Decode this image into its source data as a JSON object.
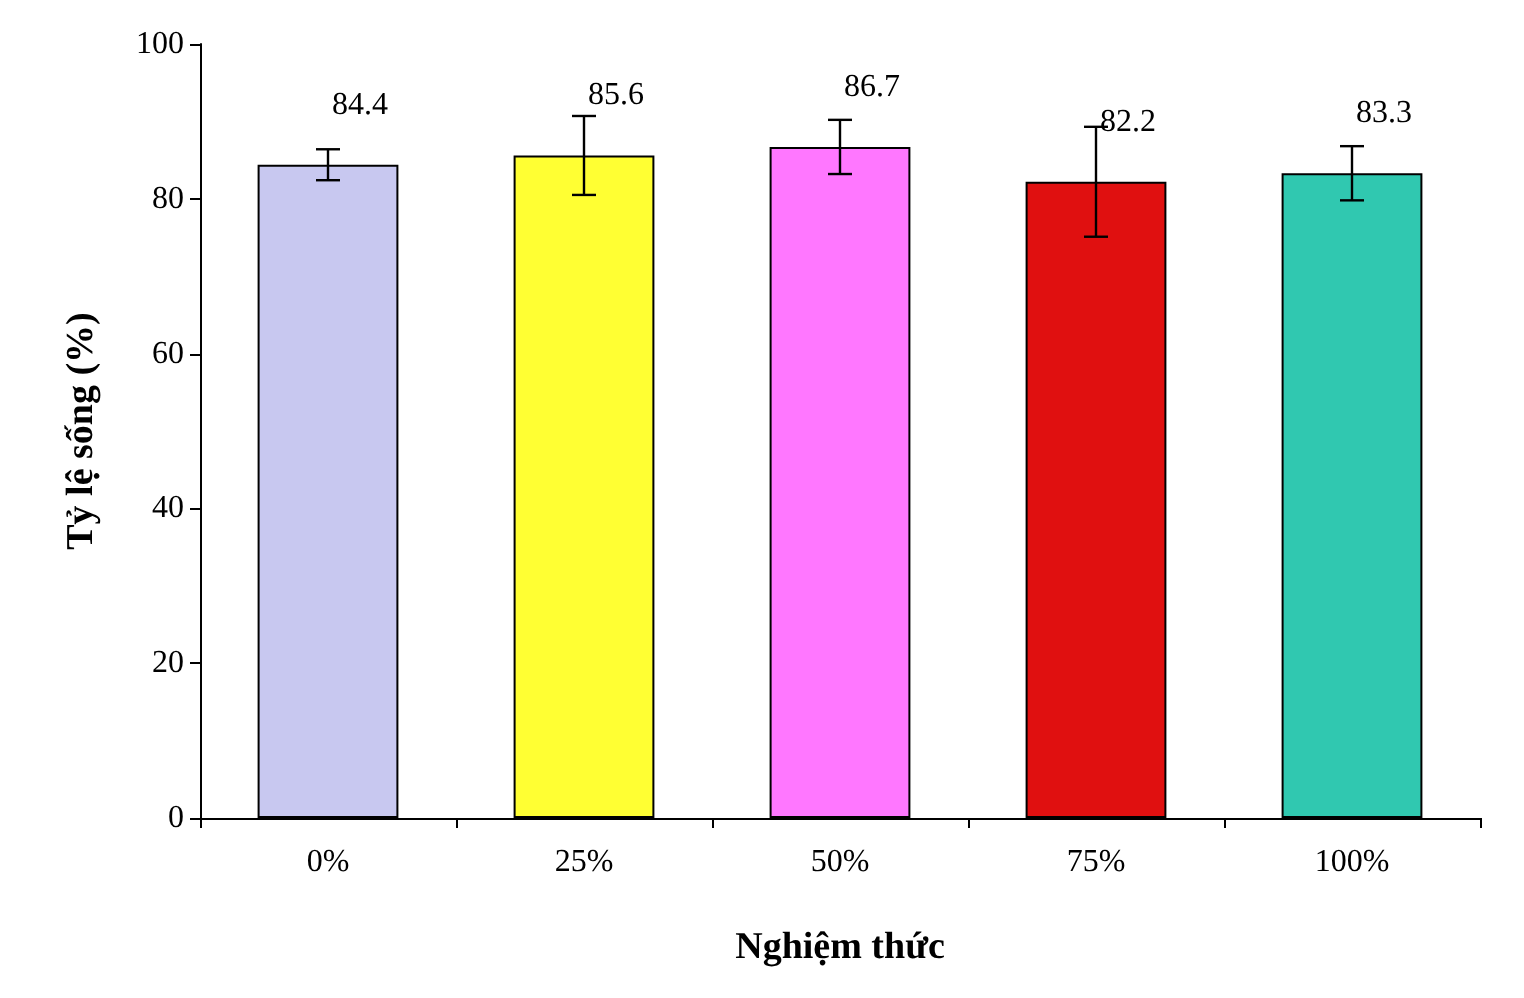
{
  "chart_data": {
    "type": "bar",
    "xlabel": "Nghiệm thức",
    "ylabel": "Tỷ lệ sống (%)",
    "categories": [
      "0%",
      "25%",
      "50%",
      "75%",
      "100%"
    ],
    "values": [
      84.4,
      85.6,
      86.7,
      82.2,
      83.3
    ],
    "colors": [
      "#c8c8f0",
      "#ffff33",
      "#ff77ff",
      "#e01010",
      "#30c8b0"
    ],
    "errors": [
      2,
      5.1,
      3.5,
      7.1,
      3.5
    ],
    "data_labels": true,
    "ylim": [
      0,
      100
    ],
    "yticks": [
      0,
      20,
      40,
      60,
      80,
      100
    ],
    "grid": false
  }
}
